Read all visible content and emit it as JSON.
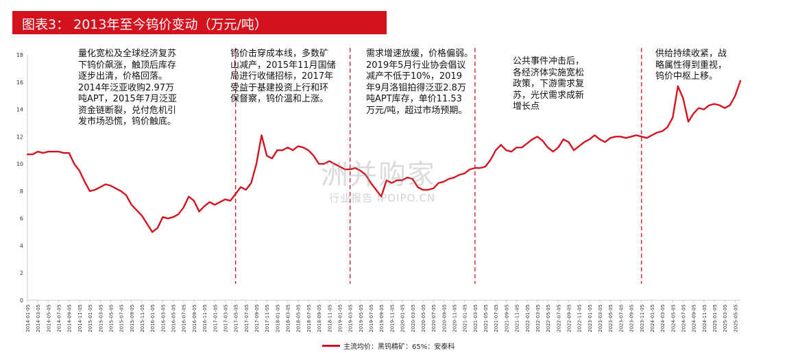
{
  "title": "图表3：  2013年至今钨价变动（万元/吨）",
  "watermark": {
    "main": "洲并购家",
    "sub": "行业报告 IPOIPO.CN"
  },
  "colors": {
    "title_bg": "#d2121e",
    "line": "#d2121e",
    "divider": "#d2121e",
    "axis": "#c8c8c8"
  },
  "annotations": [
    "量化宽松及全球经济复苏\n下钨价飙涨，触顶后库存\n逐步出清，价格回落。\n2014年泛亚收购2.97万\n吨APT，2015年7月泛亚\n资金链断裂，兑付危机引\n发市场恐慌，钨价触底。",
    "钨价击穿成本线，多数矿\n山减产，2015年11月国储\n局进行收储招标，2017年\n受益于基建投资上行和环\n保督察，钨价温和上涨。",
    "需求增速放缓，价格偏弱。\n2019年5月行业协会倡议\n减产不低于10%，2019\n年9月洛钼拍得泛亚2.8万\n吨APT库存，单价11.53\n万元/吨，超过市场预期。",
    "公共事件冲击后，\n各经济体实施宽松\n政策，下游需求复\n苏，光伏需求成新\n增长点",
    "供给持续收紧，战\n略属性得到重视，\n钨价中枢上移。"
  ],
  "chart_data": {
    "type": "line",
    "ylim": [
      0,
      18
    ],
    "yticks": [
      "0",
      "2",
      "4",
      "6",
      "8",
      "10",
      "12",
      "14",
      "16",
      "18"
    ],
    "x_tick_labels": [
      "2014-01-05",
      "2014-03-05",
      "2014-05-05",
      "2014-07-05",
      "2014-09-05",
      "2014-11-05",
      "2015-01-05",
      "2015-03-05",
      "2015-05-05",
      "2015-07-05",
      "2015-09-05",
      "2015-11-05",
      "2016-01-05",
      "2016-03-05",
      "2016-05-05",
      "2016-07-05",
      "2016-09-05",
      "2016-11-05",
      "2017-01-05",
      "2017-03-05",
      "2017-05-05",
      "2017-07-05",
      "2017-09-05",
      "2017-11-05",
      "2018-01-05",
      "2018-03-05",
      "2018-05-05",
      "2018-07-05",
      "2018-09-05",
      "2018-11-05",
      "2019-01-05",
      "2019-03-05",
      "2019-05-05",
      "2019-07-05",
      "2019-09-05",
      "2019-11-05",
      "2020-01-05",
      "2020-03-05",
      "2020-05-05",
      "2020-07-05",
      "2020-09-05",
      "2020-11-05",
      "2021-01-05",
      "2021-03-05",
      "2021-05-05",
      "2021-07-05",
      "2021-09-05",
      "2021-11-05",
      "2022-01-05",
      "2022-03-05",
      "2022-05-05",
      "2022-07-05",
      "2022-09-05",
      "2022-11-05",
      "2023-01-05",
      "2023-03-05",
      "2023-05-05",
      "2023-07-05",
      "2023-09-05",
      "2023-11-05",
      "2024-01-05",
      "2024-03-05",
      "2024-05-05",
      "2024-07-05",
      "2024-09-05",
      "2024-11-05",
      "2025-01-05",
      "2025-03-05",
      "2025-05-05"
    ],
    "dividers": [
      "2017-05",
      "2019-03",
      "2021-03",
      "2023-11"
    ],
    "series": [
      {
        "name": "主流均价：黑钨精矿：65%：安泰科",
        "points": [
          [
            "2014-01",
            10.7
          ],
          [
            "2014-02",
            10.7
          ],
          [
            "2014-03",
            10.9
          ],
          [
            "2014-04",
            10.8
          ],
          [
            "2014-05",
            10.9
          ],
          [
            "2014-06",
            10.9
          ],
          [
            "2014-07",
            10.9
          ],
          [
            "2014-08",
            10.8
          ],
          [
            "2014-09",
            10.8
          ],
          [
            "2014-10",
            10.0
          ],
          [
            "2014-11",
            9.5
          ],
          [
            "2014-12",
            8.7
          ],
          [
            "2015-01",
            8.0
          ],
          [
            "2015-02",
            8.1
          ],
          [
            "2015-03",
            8.3
          ],
          [
            "2015-04",
            8.5
          ],
          [
            "2015-05",
            8.4
          ],
          [
            "2015-06",
            8.2
          ],
          [
            "2015-07",
            8.0
          ],
          [
            "2015-08",
            7.7
          ],
          [
            "2015-09",
            7.0
          ],
          [
            "2015-10",
            6.6
          ],
          [
            "2015-11",
            6.2
          ],
          [
            "2015-12",
            5.6
          ],
          [
            "2016-01",
            5.0
          ],
          [
            "2016-02",
            5.3
          ],
          [
            "2016-03",
            6.1
          ],
          [
            "2016-04",
            6.0
          ],
          [
            "2016-05",
            6.1
          ],
          [
            "2016-06",
            6.3
          ],
          [
            "2016-07",
            6.8
          ],
          [
            "2016-08",
            7.6
          ],
          [
            "2016-09",
            7.3
          ],
          [
            "2016-10",
            6.5
          ],
          [
            "2016-11",
            6.9
          ],
          [
            "2016-12",
            7.2
          ],
          [
            "2017-01",
            7.0
          ],
          [
            "2017-02",
            7.2
          ],
          [
            "2017-03",
            7.4
          ],
          [
            "2017-04",
            7.3
          ],
          [
            "2017-05",
            7.8
          ],
          [
            "2017-06",
            8.3
          ],
          [
            "2017-07",
            8.1
          ],
          [
            "2017-08",
            8.6
          ],
          [
            "2017-09",
            10.0
          ],
          [
            "2017-10",
            12.1
          ],
          [
            "2017-11",
            10.6
          ],
          [
            "2017-12",
            10.4
          ],
          [
            "2018-01",
            11.0
          ],
          [
            "2018-02",
            11.0
          ],
          [
            "2018-03",
            11.2
          ],
          [
            "2018-04",
            11.0
          ],
          [
            "2018-05",
            11.3
          ],
          [
            "2018-06",
            11.2
          ],
          [
            "2018-07",
            11.0
          ],
          [
            "2018-08",
            10.6
          ],
          [
            "2018-09",
            10.0
          ],
          [
            "2018-10",
            10.0
          ],
          [
            "2018-11",
            10.2
          ],
          [
            "2018-12",
            10.0
          ],
          [
            "2019-01",
            9.8
          ],
          [
            "2019-02",
            9.6
          ],
          [
            "2019-03",
            9.6
          ],
          [
            "2019-04",
            9.7
          ],
          [
            "2019-05",
            9.5
          ],
          [
            "2019-06",
            9.2
          ],
          [
            "2019-07",
            8.6
          ],
          [
            "2019-08",
            8.1
          ],
          [
            "2019-09",
            7.6
          ],
          [
            "2019-10",
            8.8
          ],
          [
            "2019-11",
            8.6
          ],
          [
            "2019-12",
            8.8
          ],
          [
            "2020-01",
            8.8
          ],
          [
            "2020-02",
            9.0
          ],
          [
            "2020-03",
            8.9
          ],
          [
            "2020-04",
            8.3
          ],
          [
            "2020-05",
            8.1
          ],
          [
            "2020-06",
            8.1
          ],
          [
            "2020-07",
            8.2
          ],
          [
            "2020-08",
            8.6
          ],
          [
            "2020-09",
            8.7
          ],
          [
            "2020-10",
            8.9
          ],
          [
            "2020-11",
            9.0
          ],
          [
            "2020-12",
            9.2
          ],
          [
            "2021-01",
            9.3
          ],
          [
            "2021-02",
            9.6
          ],
          [
            "2021-03",
            9.7
          ],
          [
            "2021-04",
            9.7
          ],
          [
            "2021-05",
            9.8
          ],
          [
            "2021-06",
            10.3
          ],
          [
            "2021-07",
            11.0
          ],
          [
            "2021-08",
            11.4
          ],
          [
            "2021-09",
            11.0
          ],
          [
            "2021-10",
            10.9
          ],
          [
            "2021-11",
            11.2
          ],
          [
            "2021-12",
            11.2
          ],
          [
            "2022-01",
            11.5
          ],
          [
            "2022-02",
            11.8
          ],
          [
            "2022-03",
            12.0
          ],
          [
            "2022-04",
            11.7
          ],
          [
            "2022-05",
            11.2
          ],
          [
            "2022-06",
            10.9
          ],
          [
            "2022-07",
            11.2
          ],
          [
            "2022-08",
            11.8
          ],
          [
            "2022-09",
            11.6
          ],
          [
            "2022-10",
            11.0
          ],
          [
            "2022-11",
            11.3
          ],
          [
            "2022-12",
            11.6
          ],
          [
            "2023-01",
            11.8
          ],
          [
            "2023-02",
            12.1
          ],
          [
            "2023-03",
            11.8
          ],
          [
            "2023-04",
            11.6
          ],
          [
            "2023-05",
            11.9
          ],
          [
            "2023-06",
            12.0
          ],
          [
            "2023-07",
            12.0
          ],
          [
            "2023-08",
            11.9
          ],
          [
            "2023-09",
            12.0
          ],
          [
            "2023-10",
            12.1
          ],
          [
            "2023-11",
            12.0
          ],
          [
            "2023-12",
            11.9
          ],
          [
            "2024-01",
            12.1
          ],
          [
            "2024-02",
            12.3
          ],
          [
            "2024-03",
            12.4
          ],
          [
            "2024-04",
            12.7
          ],
          [
            "2024-05",
            13.4
          ],
          [
            "2024-06",
            15.7
          ],
          [
            "2024-07",
            14.8
          ],
          [
            "2024-08",
            13.1
          ],
          [
            "2024-09",
            13.7
          ],
          [
            "2024-10",
            14.1
          ],
          [
            "2024-11",
            14.0
          ],
          [
            "2024-12",
            14.3
          ],
          [
            "2025-01",
            14.4
          ],
          [
            "2025-02",
            14.3
          ],
          [
            "2025-03",
            14.1
          ],
          [
            "2025-04",
            14.3
          ],
          [
            "2025-05",
            15.0
          ],
          [
            "2025-06",
            16.1
          ]
        ]
      }
    ]
  }
}
